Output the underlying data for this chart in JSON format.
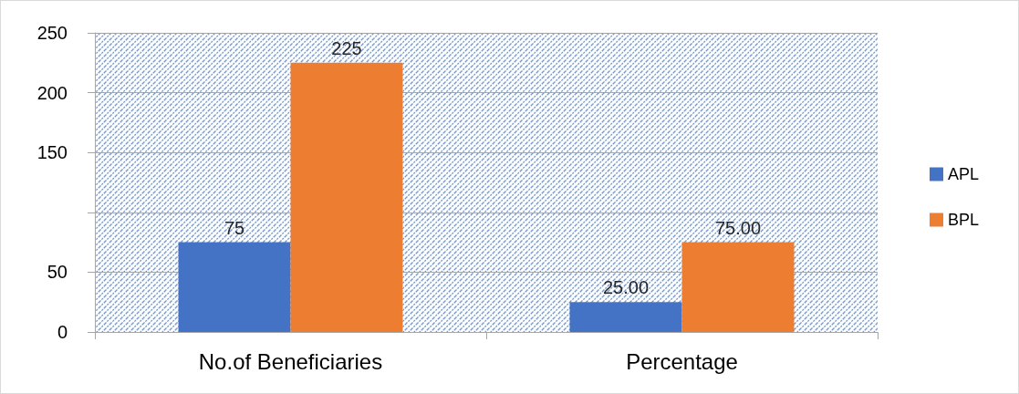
{
  "chart_data": {
    "type": "bar",
    "categories": [
      "No.of Beneficiaries",
      "Percentage"
    ],
    "series": [
      {
        "name": "APL",
        "color": "#4472c4",
        "values": [
          75,
          25
        ],
        "value_labels": [
          "75",
          "25.00"
        ]
      },
      {
        "name": "BPL",
        "color": "#ed7d31",
        "values": [
          225,
          75
        ],
        "value_labels": [
          "225",
          "75.00"
        ]
      }
    ],
    "ylim": [
      0,
      250
    ],
    "yticks": [
      0,
      50,
      {
        "value": 100,
        "label": null
      },
      150,
      200,
      250
    ],
    "grid": "y",
    "legend": "right"
  }
}
